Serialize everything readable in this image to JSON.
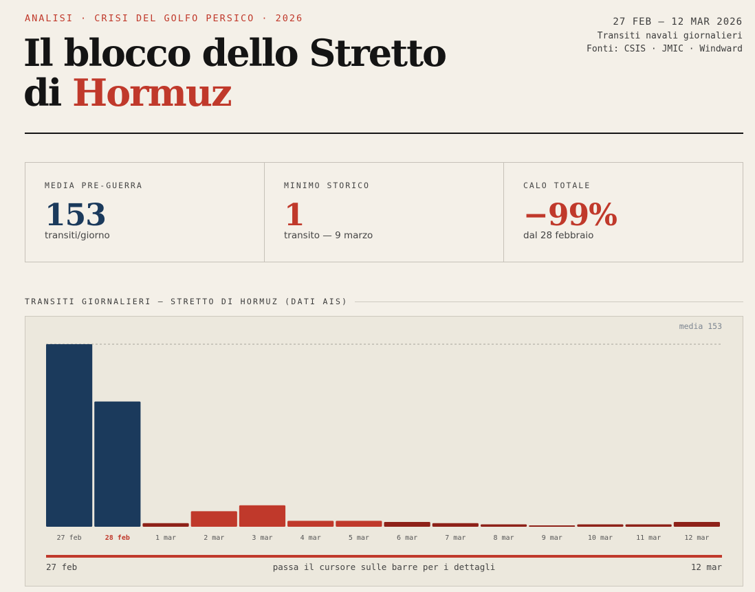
{
  "header": {
    "kicker": "ANALISI · CRISI DEL GOLFO PERSICO · 2026",
    "title_line1": "Il blocco dello Stretto",
    "title_prefix": "di",
    "title_accent": "Hormuz",
    "meta_dates": "27 FEB – 12 MAR 2026",
    "meta_subject": "Transiti navali giornalieri",
    "meta_sources": "Fonti: CSIS · JMIC · Windward"
  },
  "stats": [
    {
      "label": "MEDIA PRE-GUERRA",
      "value": "153",
      "sub": "transiti/giorno"
    },
    {
      "label": "MINIMO STORICO",
      "value": "1",
      "sub": "transito — 9 marzo"
    },
    {
      "label": "CALO TOTALE",
      "value": "−99%",
      "sub": "dal 28 febbraio"
    }
  ],
  "section_title": "TRANSITI GIORNALIERI — STRETTO DI HORMUZ (DATI AIS)",
  "chart": {
    "avg_label": "media 153",
    "footer_left": "27 feb",
    "footer_center": "passa il cursore sulle barre per i dettagli",
    "footer_right": "12 mar"
  },
  "colors": {
    "prewar": "#1b3a5c",
    "blockade": "#c0392b",
    "low": "#8e2219",
    "accent": "#c0392b"
  },
  "chart_data": {
    "type": "bar",
    "categories": [
      "27 feb",
      "28 feb",
      "1 mar",
      "2 mar",
      "3 mar",
      "4 mar",
      "5 mar",
      "6 mar",
      "7 mar",
      "8 mar",
      "9 mar",
      "10 mar",
      "11 mar",
      "12 mar"
    ],
    "values": [
      153,
      105,
      3,
      13,
      18,
      5,
      5,
      4,
      3,
      2,
      1,
      2,
      2,
      4
    ],
    "highlight_category": "28 feb",
    "reference_line": {
      "value": 153,
      "label": "media 153"
    },
    "ylim": [
      0,
      160
    ],
    "grid": false,
    "legend": "none"
  }
}
